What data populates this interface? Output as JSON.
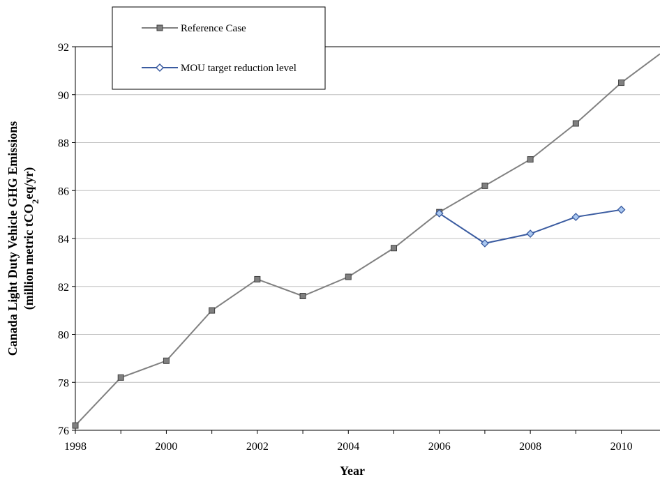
{
  "chart_data": {
    "type": "line",
    "xlabel": "Year",
    "ylabel_line1": "Canada Light Duty Vehicle GHG Emissions",
    "ylabel_line2_pre": "(million metric tCO",
    "ylabel_line2_sub": "2",
    "ylabel_line2_post": "eq/yr)",
    "xlim": [
      1998,
      2010.85
    ],
    "ylim": [
      76,
      92
    ],
    "x_ticks": [
      1998,
      2000,
      2002,
      2004,
      2006,
      2008,
      2010
    ],
    "y_ticks": [
      76,
      78,
      80,
      82,
      84,
      86,
      88,
      90,
      92
    ],
    "grid": "horizontal",
    "legend": "top-left",
    "series": [
      {
        "name": "Reference Case",
        "color": "#808080",
        "marker": "square",
        "x": [
          1998,
          1999,
          2000,
          2001,
          2002,
          2003,
          2004,
          2005,
          2006,
          2007,
          2008,
          2009,
          2010
        ],
        "y": [
          76.2,
          78.2,
          78.9,
          81.0,
          82.3,
          81.6,
          82.4,
          83.6,
          85.1,
          86.2,
          87.3,
          88.8,
          90.5
        ],
        "extend_to": [
          2010.85,
          91.7
        ]
      },
      {
        "name": "MOU target reduction level",
        "color": "#3a5ba0",
        "marker": "diamond",
        "x": [
          2006,
          2007,
          2008,
          2009,
          2010
        ],
        "y": [
          85.05,
          83.8,
          84.2,
          84.9,
          85.2
        ]
      }
    ]
  }
}
